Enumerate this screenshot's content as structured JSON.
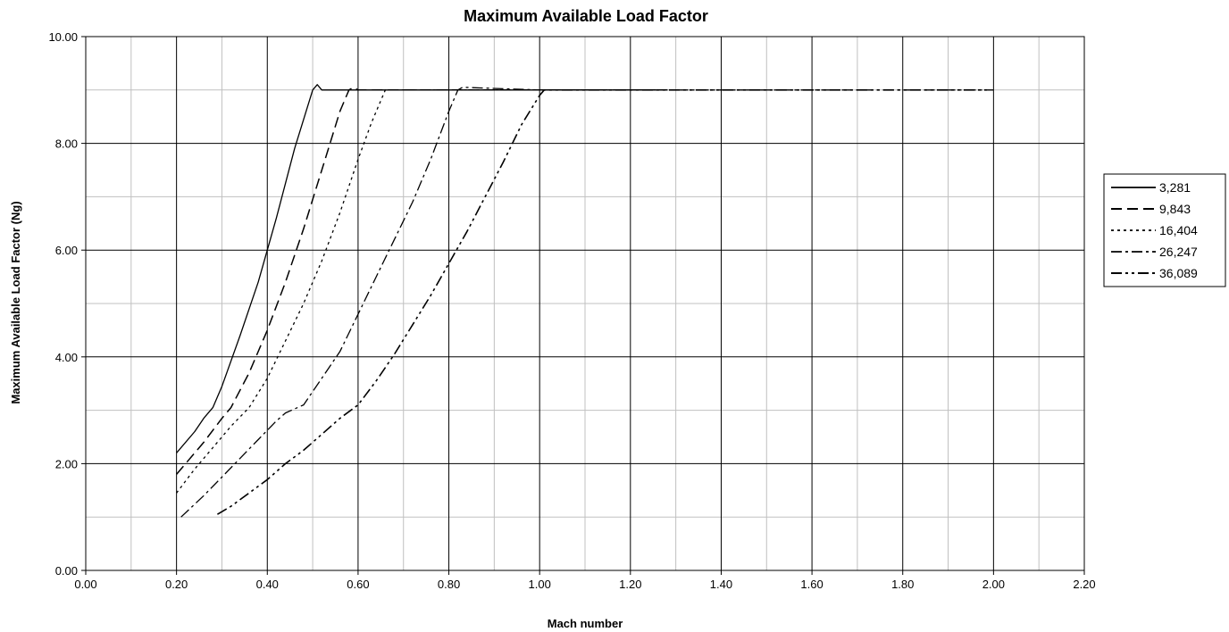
{
  "chart_data": {
    "type": "line",
    "title": "Maximum Available Load Factor",
    "xlabel": "Mach number",
    "ylabel": "Maximum Available Load Factor (Ng)",
    "xlim": [
      0,
      2.2
    ],
    "ylim": [
      0,
      10
    ],
    "x_ticks": [
      "0.00",
      "0.20",
      "0.40",
      "0.60",
      "0.80",
      "1.00",
      "1.20",
      "1.40",
      "1.60",
      "1.80",
      "2.00",
      "2.20"
    ],
    "y_ticks": [
      "0.00",
      "2.00",
      "4.00",
      "6.00",
      "8.00",
      "10.00"
    ],
    "grid": true,
    "legend_position": "right",
    "series": [
      {
        "name": "3,281",
        "style": "solid",
        "x": [
          0.2,
          0.24,
          0.26,
          0.28,
          0.3,
          0.34,
          0.38,
          0.42,
          0.46,
          0.5,
          0.51,
          0.52,
          0.6,
          0.8,
          1.0,
          1.28
        ],
        "y": [
          2.2,
          2.6,
          2.85,
          3.05,
          3.45,
          4.4,
          5.4,
          6.6,
          7.9,
          9.0,
          9.1,
          9.0,
          9.0,
          9.0,
          9.0,
          9.0
        ]
      },
      {
        "name": "9,843",
        "style": "dash",
        "x": [
          0.2,
          0.26,
          0.3,
          0.32,
          0.36,
          0.4,
          0.44,
          0.48,
          0.52,
          0.56,
          0.58,
          0.59,
          0.6,
          0.8,
          1.0,
          1.2,
          1.28
        ],
        "y": [
          1.8,
          2.4,
          2.85,
          3.05,
          3.7,
          4.5,
          5.4,
          6.4,
          7.5,
          8.6,
          9.0,
          9.05,
          9.0,
          9.0,
          9.0,
          9.0,
          9.0
        ]
      },
      {
        "name": "16,404",
        "style": "dot",
        "x": [
          0.2,
          0.24,
          0.28,
          0.32,
          0.36,
          0.4,
          0.44,
          0.48,
          0.52,
          0.56,
          0.6,
          0.63,
          0.66,
          0.8,
          1.0,
          1.2,
          1.3
        ],
        "y": [
          1.45,
          1.9,
          2.3,
          2.7,
          3.05,
          3.6,
          4.3,
          5.0,
          5.8,
          6.7,
          7.7,
          8.4,
          9.0,
          9.0,
          9.0,
          9.0,
          9.0
        ]
      },
      {
        "name": "26,247",
        "style": "dashdot",
        "x": [
          0.21,
          0.26,
          0.3,
          0.34,
          0.38,
          0.42,
          0.44,
          0.48,
          0.52,
          0.56,
          0.6,
          0.64,
          0.68,
          0.72,
          0.76,
          0.8,
          0.82,
          0.83,
          1.0,
          1.2,
          1.4,
          1.6,
          1.8,
          2.0
        ],
        "y": [
          1.0,
          1.4,
          1.75,
          2.1,
          2.45,
          2.8,
          2.95,
          3.1,
          3.6,
          4.1,
          4.8,
          5.5,
          6.2,
          6.9,
          7.7,
          8.6,
          9.0,
          9.05,
          9.0,
          9.0,
          9.0,
          9.0,
          9.0,
          9.0
        ]
      },
      {
        "name": "36,089",
        "style": "dashdotdot",
        "x": [
          0.29,
          0.32,
          0.36,
          0.4,
          0.44,
          0.48,
          0.52,
          0.56,
          0.6,
          0.64,
          0.68,
          0.72,
          0.76,
          0.8,
          0.84,
          0.88,
          0.92,
          0.96,
          1.0,
          1.01,
          1.2,
          1.4,
          1.6,
          1.8,
          1.99
        ],
        "y": [
          1.05,
          1.2,
          1.45,
          1.7,
          2.0,
          2.25,
          2.55,
          2.85,
          3.1,
          3.55,
          4.05,
          4.6,
          5.15,
          5.75,
          6.35,
          7.0,
          7.65,
          8.35,
          8.9,
          9.0,
          9.0,
          9.0,
          9.0,
          9.0,
          9.0
        ]
      }
    ]
  }
}
